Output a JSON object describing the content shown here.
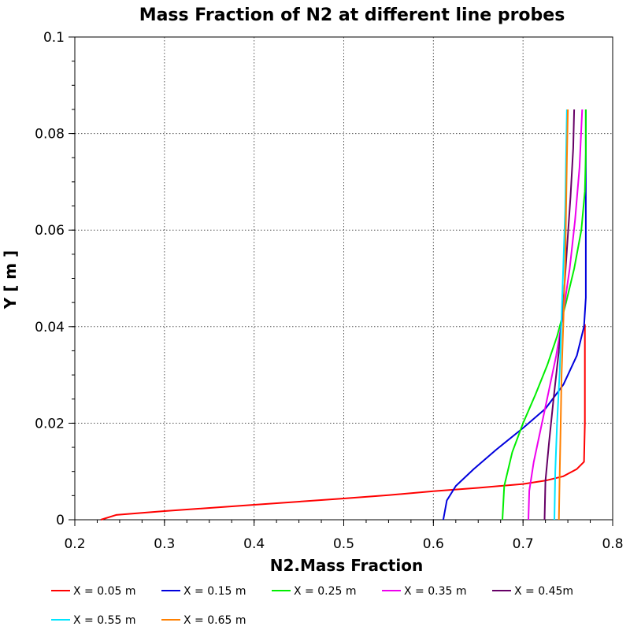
{
  "chart_data": {
    "type": "line",
    "title": "Mass Fraction of N2 at different line probes",
    "xlabel": "N2.Mass Fraction",
    "ylabel": "Y [ m ]",
    "xlim": [
      0.2,
      0.8
    ],
    "ylim": [
      0,
      0.1
    ],
    "xticks": [
      "0.2",
      "0.3",
      "0.4",
      "0.5",
      "0.6",
      "0.7",
      "0.8"
    ],
    "yticks": [
      "0",
      "0.02",
      "0.04",
      "0.06",
      "0.08",
      "0.1"
    ],
    "grid": true,
    "legend_position": "bottom",
    "series": [
      {
        "name": "X = 0.05 m",
        "color": "#ff0000",
        "x": [
          0.229,
          0.246,
          0.3,
          0.4,
          0.5,
          0.55,
          0.6,
          0.65,
          0.7,
          0.725,
          0.745,
          0.76,
          0.768,
          0.769,
          0.769,
          0.769
        ],
        "y": [
          0.0,
          0.001,
          0.0018,
          0.0031,
          0.0044,
          0.0051,
          0.0059,
          0.0066,
          0.0074,
          0.0081,
          0.009,
          0.0105,
          0.012,
          0.02,
          0.03,
          0.0405
        ]
      },
      {
        "name": "X = 0.15 m",
        "color": "#0000dd",
        "x": [
          0.611,
          0.615,
          0.625,
          0.645,
          0.67,
          0.7,
          0.725,
          0.745,
          0.76,
          0.768,
          0.77,
          0.77,
          0.77,
          0.77
        ],
        "y": [
          0.0,
          0.004,
          0.007,
          0.0105,
          0.0145,
          0.019,
          0.023,
          0.028,
          0.034,
          0.04,
          0.046,
          0.055,
          0.065,
          0.085
        ]
      },
      {
        "name": "X = 0.25 m",
        "color": "#00ee00",
        "x": [
          0.677,
          0.679,
          0.688,
          0.7,
          0.714,
          0.727,
          0.738,
          0.748,
          0.757,
          0.765,
          0.769,
          0.77,
          0.77
        ],
        "y": [
          0.0,
          0.007,
          0.014,
          0.02,
          0.026,
          0.032,
          0.038,
          0.045,
          0.052,
          0.06,
          0.068,
          0.076,
          0.085
        ]
      },
      {
        "name": "X = 0.35 m",
        "color": "#ee00ee",
        "x": [
          0.706,
          0.707,
          0.712,
          0.72,
          0.728,
          0.737,
          0.745,
          0.752,
          0.758,
          0.763,
          0.766
        ],
        "y": [
          0.0,
          0.006,
          0.012,
          0.019,
          0.026,
          0.034,
          0.043,
          0.052,
          0.062,
          0.073,
          0.085
        ]
      },
      {
        "name": "X = 0.45m",
        "color": "#660066",
        "x": [
          0.724,
          0.725,
          0.729,
          0.734,
          0.74,
          0.745,
          0.749,
          0.753,
          0.756,
          0.757
        ],
        "y": [
          0.0,
          0.008,
          0.016,
          0.025,
          0.035,
          0.045,
          0.056,
          0.067,
          0.077,
          0.085
        ]
      },
      {
        "name": "X = 0.55 m",
        "color": "#00e5ff",
        "x": [
          0.735,
          0.736,
          0.738,
          0.741,
          0.743,
          0.745,
          0.747,
          0.748,
          0.749
        ],
        "y": [
          0.0,
          0.01,
          0.02,
          0.031,
          0.042,
          0.053,
          0.064,
          0.075,
          0.085
        ]
      },
      {
        "name": "X = 0.65 m",
        "color": "#ff8000",
        "x": [
          0.74,
          0.741,
          0.742,
          0.743,
          0.745,
          0.747,
          0.748,
          0.749,
          0.75
        ],
        "y": [
          0.0,
          0.01,
          0.02,
          0.03,
          0.041,
          0.053,
          0.064,
          0.075,
          0.085
        ]
      }
    ]
  }
}
